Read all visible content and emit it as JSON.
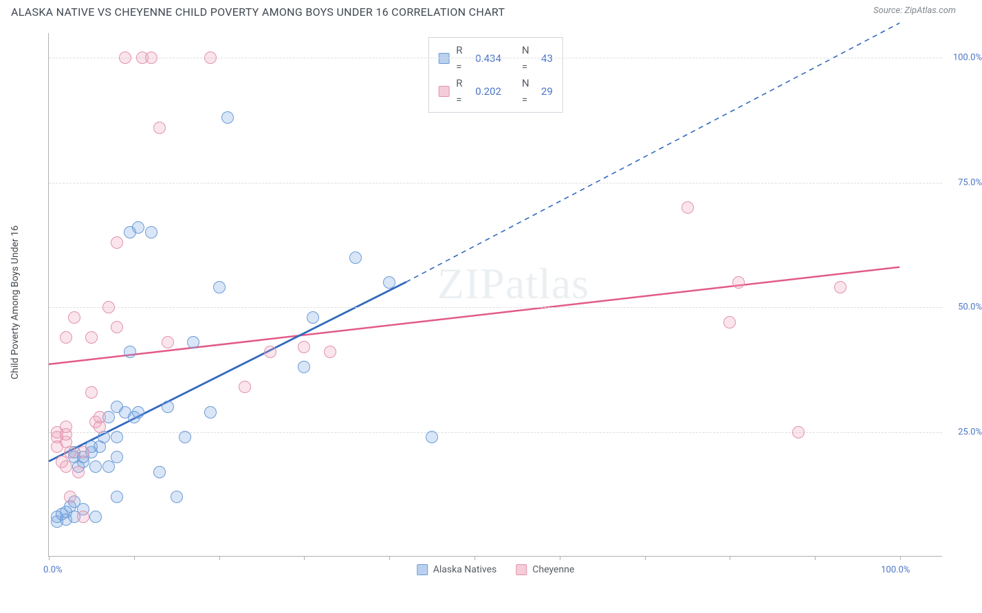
{
  "title": "ALASKA NATIVE VS CHEYENNE CHILD POVERTY AMONG BOYS UNDER 16 CORRELATION CHART",
  "source": "Source: ZipAtlas.com",
  "ylabel": "Child Poverty Among Boys Under 16",
  "watermark": "ZIPatlas",
  "chart": {
    "type": "scatter",
    "xlim": [
      0,
      105
    ],
    "ylim": [
      0,
      105
    ],
    "xticks": [
      0,
      10,
      20,
      30,
      40,
      50,
      60,
      70,
      80,
      90,
      100
    ],
    "yticks_labeled": [
      {
        "v": 25,
        "label": "25.0%"
      },
      {
        "v": 50,
        "label": "50.0%"
      },
      {
        "v": 75,
        "label": "75.0%"
      },
      {
        "v": 100,
        "label": "100.0%"
      }
    ],
    "xlabels": [
      {
        "v": 0,
        "label": "0.0%"
      },
      {
        "v": 100,
        "label": "100.0%"
      }
    ],
    "grid_color": "#dcdde0",
    "axis_color": "#b0b0b0",
    "marker_radius": 9,
    "marker_stroke_width": 1.6,
    "series": [
      {
        "name": "Alaska Natives",
        "fill": "rgba(120,165,225,0.28)",
        "stroke": "#6a9ad6",
        "swatch_fill": "#b9d1ee",
        "swatch_border": "#6a9ad6",
        "line_color": "#3068c0",
        "R": "0.434",
        "N": "43",
        "points": [
          [
            1,
            7
          ],
          [
            1,
            8
          ],
          [
            1.5,
            8.5
          ],
          [
            2,
            7.5
          ],
          [
            2,
            9
          ],
          [
            2.5,
            10
          ],
          [
            3,
            8
          ],
          [
            3,
            11
          ],
          [
            3.5,
            18
          ],
          [
            3,
            20
          ],
          [
            3,
            21
          ],
          [
            4,
            9.5
          ],
          [
            4,
            19
          ],
          [
            4,
            20
          ],
          [
            5,
            21
          ],
          [
            5,
            22
          ],
          [
            5.5,
            8
          ],
          [
            5.5,
            18
          ],
          [
            6,
            22
          ],
          [
            6.5,
            24
          ],
          [
            7,
            18
          ],
          [
            7,
            28
          ],
          [
            8,
            12
          ],
          [
            8,
            20
          ],
          [
            8,
            24
          ],
          [
            8,
            30
          ],
          [
            9,
            29
          ],
          [
            9.5,
            41
          ],
          [
            9.5,
            65
          ],
          [
            10,
            28
          ],
          [
            10.5,
            66
          ],
          [
            10.5,
            29
          ],
          [
            12,
            65
          ],
          [
            13,
            17
          ],
          [
            14,
            30
          ],
          [
            15,
            12
          ],
          [
            16,
            24
          ],
          [
            17,
            43
          ],
          [
            19,
            29
          ],
          [
            20,
            54
          ],
          [
            21,
            88
          ],
          [
            30,
            38
          ],
          [
            31,
            48
          ],
          [
            36,
            60
          ],
          [
            40,
            55
          ],
          [
            45,
            24
          ]
        ],
        "regression": {
          "solid_end_x": 42,
          "y_at_0": 19,
          "y_at_42": 55,
          "y_at_100": 107,
          "dash_color": "#3068c0"
        }
      },
      {
        "name": "Cheyenne",
        "fill": "rgba(236,160,185,0.28)",
        "stroke": "#e291ab",
        "swatch_fill": "#f4cdd9",
        "swatch_border": "#e291ab",
        "line_color": "#e25a86",
        "R": "0.202",
        "N": "29",
        "points": [
          [
            1,
            24
          ],
          [
            1,
            25
          ],
          [
            1,
            22
          ],
          [
            1.5,
            19
          ],
          [
            2,
            18
          ],
          [
            2,
            23
          ],
          [
            2,
            24.5
          ],
          [
            2,
            26
          ],
          [
            2,
            44
          ],
          [
            2.5,
            12
          ],
          [
            2.5,
            21
          ],
          [
            3,
            48
          ],
          [
            3.5,
            17
          ],
          [
            4,
            8
          ],
          [
            4,
            21
          ],
          [
            5,
            33
          ],
          [
            5,
            44
          ],
          [
            5.5,
            27
          ],
          [
            6,
            26
          ],
          [
            6,
            28
          ],
          [
            7,
            50
          ],
          [
            8,
            46
          ],
          [
            8,
            63
          ],
          [
            9,
            100
          ],
          [
            11,
            100
          ],
          [
            12,
            100
          ],
          [
            13,
            86
          ],
          [
            14,
            43
          ],
          [
            19,
            100
          ],
          [
            23,
            34
          ],
          [
            26,
            41
          ],
          [
            30,
            42
          ],
          [
            33,
            41
          ],
          [
            75,
            70
          ],
          [
            80,
            47
          ],
          [
            81,
            55
          ],
          [
            88,
            25
          ],
          [
            93,
            54
          ]
        ],
        "regression": {
          "y_at_0": 38.5,
          "y_at_100": 58
        }
      }
    ]
  },
  "legend_bottom": [
    {
      "label": "Alaska Natives",
      "fill": "#b9d1ee",
      "border": "#6a9ad6"
    },
    {
      "label": "Cheyenne",
      "fill": "#f4cdd9",
      "border": "#e291ab"
    }
  ]
}
